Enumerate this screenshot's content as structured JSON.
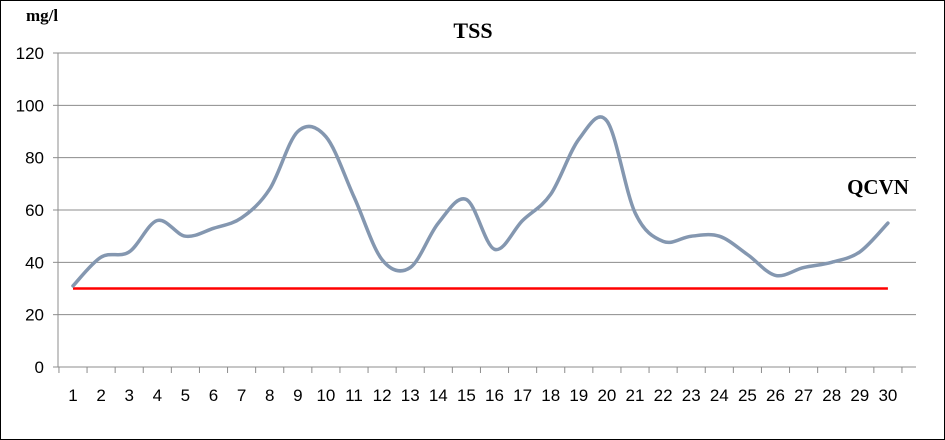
{
  "chart_data": {
    "type": "line",
    "title": "TSS",
    "ylabel": "mg/l",
    "xlabel": "",
    "ylim": [
      0,
      120
    ],
    "yticks": [
      0,
      20,
      40,
      60,
      80,
      100,
      120
    ],
    "grid": true,
    "x": [
      1,
      2,
      3,
      4,
      5,
      6,
      7,
      8,
      9,
      10,
      11,
      12,
      13,
      14,
      15,
      16,
      17,
      18,
      19,
      20,
      21,
      22,
      23,
      24,
      25,
      26,
      27,
      28,
      29,
      30
    ],
    "series": [
      {
        "name": "",
        "color": "#8497b0",
        "values": [
          31,
          42,
          44,
          56,
          50,
          53,
          57,
          68,
          90,
          88,
          65,
          41,
          38,
          55,
          64,
          45,
          56,
          66,
          87,
          94,
          59,
          48,
          50,
          50,
          43,
          35,
          38,
          40,
          44,
          55
        ]
      },
      {
        "name": "QCVN",
        "color": "#ff0000",
        "values": [
          30,
          30,
          30,
          30,
          30,
          30,
          30,
          30,
          30,
          30,
          30,
          30,
          30,
          30,
          30,
          30,
          30,
          30,
          30,
          30,
          30,
          30,
          30,
          30,
          30,
          30,
          30,
          30,
          30,
          30
        ]
      }
    ]
  }
}
